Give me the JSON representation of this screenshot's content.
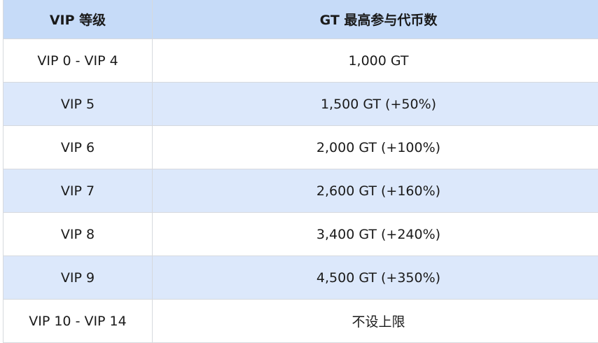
{
  "table": {
    "header": [
      "VIP 等级",
      "GT 最高参与代币数"
    ],
    "rows": [
      [
        "VIP 0 - VIP 4",
        "1,000 GT"
      ],
      [
        "VIP 5",
        "1,500 GT (+50%)"
      ],
      [
        "VIP 6",
        "2,000 GT (+100%)"
      ],
      [
        "VIP 7",
        "2,600 GT (+160%)"
      ],
      [
        "VIP 8",
        "3,400 GT (+240%)"
      ],
      [
        "VIP 9",
        "4,500 GT (+350%)"
      ],
      [
        "VIP 10 - VIP 14",
        "不设上限"
      ]
    ]
  }
}
